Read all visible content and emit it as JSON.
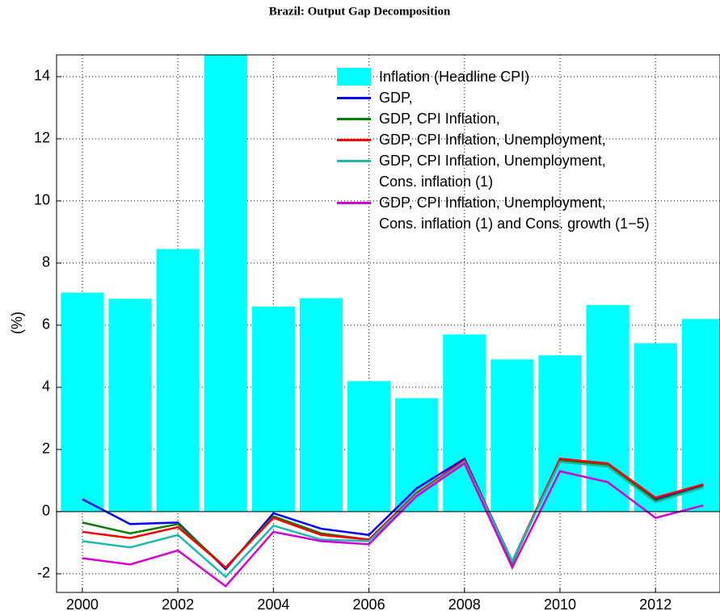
{
  "chart_data": {
    "type": "bar",
    "title": "Brazil: Output Gap Decomposition",
    "y_label": "(%)",
    "x": [
      2000,
      2001,
      2002,
      2003,
      2004,
      2005,
      2006,
      2007,
      2008,
      2009,
      2010,
      2011,
      2012,
      2013
    ],
    "series": [
      {
        "name": "Inflation (Headline CPI)",
        "type": "bar",
        "color": "#00ffff",
        "values": [
          7.05,
          6.85,
          8.45,
          14.7,
          6.6,
          6.87,
          4.2,
          3.65,
          5.7,
          4.9,
          5.03,
          6.65,
          5.42,
          6.2
        ]
      },
      {
        "name": "GDP,",
        "type": "line",
        "color": "#0000ff",
        "values": [
          0.4,
          -0.4,
          -0.35,
          -1.85,
          -0.05,
          -0.55,
          -0.75,
          0.75,
          1.7,
          -1.6,
          1.7,
          1.55,
          0.4,
          0.85
        ]
      },
      {
        "name": "GDP, CPI Inflation,",
        "type": "line",
        "color": "#008000",
        "values": [
          -0.35,
          -0.7,
          -0.4,
          -1.8,
          -0.15,
          -0.7,
          -0.9,
          0.6,
          1.6,
          -1.65,
          1.65,
          1.5,
          0.35,
          0.8
        ]
      },
      {
        "name": "GDP, CPI Inflation, Unemployment,",
        "type": "line",
        "color": "#ff0000",
        "values": [
          -0.65,
          -0.85,
          -0.5,
          -1.8,
          -0.2,
          -0.75,
          -0.9,
          0.6,
          1.65,
          -1.6,
          1.7,
          1.55,
          0.45,
          0.88
        ]
      },
      {
        "name": "GDP, CPI Inflation, Unemployment,\nCons. inflation (1)",
        "type": "line",
        "color": "#1fb8b0",
        "values": [
          -0.95,
          -1.15,
          -0.75,
          -2.1,
          -0.45,
          -0.9,
          -0.95,
          0.55,
          1.6,
          -1.6,
          1.6,
          1.45,
          0.3,
          0.78
        ]
      },
      {
        "name": "GDP, CPI Inflation, Unemployment,\nCons. inflation (1) and Cons. growth (1−5)",
        "type": "line",
        "color": "#d400d4",
        "values": [
          -1.5,
          -1.7,
          -1.25,
          -2.4,
          -0.65,
          -0.95,
          -1.05,
          0.5,
          1.55,
          -1.8,
          1.3,
          0.95,
          -0.2,
          0.2
        ]
      }
    ],
    "xlim": [
      1999.46,
      2013.35
    ],
    "xticks": [
      2000,
      2002,
      2004,
      2006,
      2008,
      2010,
      2012
    ],
    "ylim": [
      -2.6,
      14.7
    ],
    "yticks": [
      -2,
      0,
      2,
      4,
      6,
      8,
      10,
      12,
      14
    ],
    "grid": true,
    "legend": "upper right"
  }
}
